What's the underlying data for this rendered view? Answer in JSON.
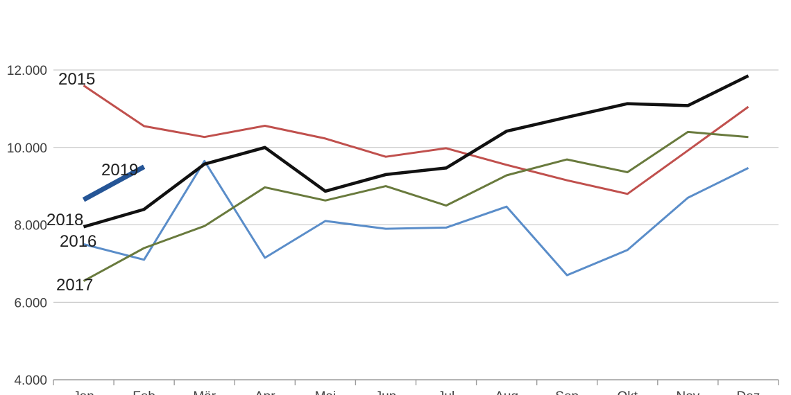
{
  "chart_data": {
    "type": "line",
    "title": "",
    "xlabel": "",
    "ylabel": "",
    "categories": [
      "Jan",
      "Feb",
      "Mär",
      "Apr",
      "Mai",
      "Jun",
      "Jul",
      "Aug",
      "Sep",
      "Okt",
      "Nov",
      "Dez"
    ],
    "y_axis": {
      "min": 4000,
      "max": 12000,
      "step": 2000,
      "tick_labels": [
        "4.000",
        "6.000",
        "8.000",
        "10.000",
        "12.000"
      ]
    },
    "grid": true,
    "legend": "inline-annotations",
    "series": [
      {
        "name": "2015",
        "color": "#C0504D",
        "width": 3,
        "values": [
          11600,
          10550,
          10270,
          10560,
          10230,
          9760,
          9980,
          9550,
          9150,
          8800,
          9920,
          11050
        ]
      },
      {
        "name": "2016",
        "color": "#5A8DC9",
        "width": 3,
        "values": [
          7500,
          7100,
          9650,
          7150,
          8100,
          7900,
          7930,
          8470,
          6700,
          7350,
          8700,
          9470
        ]
      },
      {
        "name": "2017",
        "color": "#697A3D",
        "width": 3,
        "values": [
          6550,
          7400,
          7970,
          8970,
          8630,
          9000,
          8500,
          9280,
          9690,
          9360,
          10400,
          10270
        ]
      },
      {
        "name": "2018",
        "color": "#111111",
        "width": 4.5,
        "values": [
          7950,
          8400,
          9570,
          10000,
          8870,
          9300,
          9470,
          10420,
          10780,
          11130,
          11080,
          11850
        ]
      },
      {
        "name": "2019",
        "color": "#255596",
        "width": 7,
        "values": [
          8650,
          9500,
          null,
          null,
          null,
          null,
          null,
          null,
          null,
          null,
          null,
          null
        ]
      }
    ],
    "annotations": [
      {
        "text": "2015",
        "x": 84,
        "y": 122
      },
      {
        "text": "2019",
        "x": 146,
        "y": 253
      },
      {
        "text": "2018",
        "x": 67,
        "y": 325
      },
      {
        "text": "2016",
        "x": 86,
        "y": 356
      },
      {
        "text": "2017",
        "x": 81,
        "y": 419
      }
    ],
    "colors": {
      "gridline": "#BFBFBF",
      "axis": "#9B9B9B",
      "tick_label": "#3F3F3F",
      "annotation": "#1F1F1F",
      "background": "#FFFFFF"
    }
  }
}
